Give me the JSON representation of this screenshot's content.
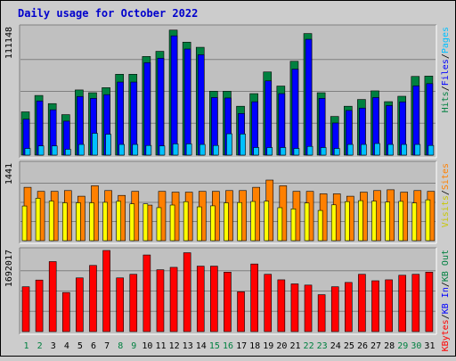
{
  "colors": {
    "background": "#cccccc",
    "panel": "#c0c0c0",
    "border": "#ff0000",
    "title": "#0000cc",
    "hits": "#008040",
    "files": "#0000ff",
    "pages": "#00c0ff",
    "visits": "#ffff00",
    "sites": "#ff8000",
    "kbin": "#008040",
    "kbout": "#0000ff",
    "kbf": "#ff0000",
    "weekday_label": "#000000",
    "weekend_label": "#008040"
  },
  "chart_data": {
    "type": "bar",
    "title": "Daily usage for October 2022",
    "days": [
      "1",
      "2",
      "3",
      "4",
      "5",
      "6",
      "7",
      "8",
      "9",
      "10",
      "11",
      "12",
      "13",
      "14",
      "15",
      "16",
      "17",
      "18",
      "19",
      "20",
      "21",
      "22",
      "23",
      "24",
      "25",
      "26",
      "27",
      "28",
      "29",
      "30",
      "31"
    ],
    "weekend_days": [
      "1",
      "2",
      "8",
      "9",
      "15",
      "16",
      "22",
      "23",
      "29",
      "30"
    ],
    "panels": [
      {
        "id": "hits",
        "ymax_label": "111148",
        "ymax": 111148,
        "axis_legend": [
          {
            "text": "Hits",
            "color": "#008040"
          },
          {
            "text": "/",
            "color": "#000000"
          },
          {
            "text": "Files",
            "color": "#0000ff"
          },
          {
            "text": "/",
            "color": "#000000"
          },
          {
            "text": "Pages",
            "color": "#00c0ff"
          }
        ],
        "series": [
          {
            "name": "Hits",
            "color": "#008040",
            "values": [
              37700,
              52000,
              44900,
              35300,
              56800,
              54400,
              58800,
              70500,
              70500,
              86000,
              90500,
              109000,
              98500,
              94000,
              55700,
              55700,
              42600,
              53600,
              72500,
              60200,
              81800,
              106000,
              54400,
              33700,
              42600,
              48500,
              56000,
              46600,
              51300,
              68600,
              68900
            ]
          },
          {
            "name": "Files",
            "color": "#0000ff",
            "values": [
              31300,
              47200,
              39500,
              29600,
              51100,
              49500,
              52700,
              63700,
              63700,
              80600,
              84500,
              104000,
              92500,
              87500,
              50200,
              49800,
              36300,
              46500,
              64700,
              53600,
              75000,
              101000,
              49500,
              28000,
              38900,
              41000,
              50200,
              43200,
              46400,
              60400,
              62300
            ]
          },
          {
            "name": "Pages",
            "color": "#00c0ff",
            "values": [
              5800,
              8000,
              8000,
              5100,
              9300,
              19000,
              18200,
              9300,
              9300,
              8400,
              8000,
              9800,
              9800,
              9300,
              8400,
              18600,
              18400,
              6600,
              6600,
              6600,
              5800,
              7600,
              6600,
              5800,
              9300,
              9300,
              10100,
              9300,
              9300,
              9300,
              8400
            ]
          }
        ]
      },
      {
        "id": "visits",
        "ymax_label": "1441",
        "ymax": 1441,
        "axis_legend": [
          {
            "text": "Visits",
            "color": "#c8c800"
          },
          {
            "text": "/",
            "color": "#000000"
          },
          {
            "text": "Sites",
            "color": "#ff8000"
          }
        ],
        "series": [
          {
            "name": "Sites",
            "color": "#ff8000",
            "values": [
              1003,
              927,
              927,
              942,
              836,
              1032,
              942,
              851,
              927,
              669,
              927,
              912,
              912,
              927,
              927,
              942,
              942,
              1003,
              1139,
              1032,
              927,
              927,
              881,
              881,
              836,
              912,
              942,
              957,
              912,
              942,
              927
            ]
          },
          {
            "name": "Visits",
            "color": "#ffff00",
            "values": [
              652,
              797,
              745,
              712,
              712,
              712,
              721,
              740,
              692,
              692,
              621,
              670,
              733,
              636,
              655,
              711,
              717,
              737,
              743,
              620,
              598,
              708,
              568,
              674,
              734,
              752,
              744,
              727,
              739,
              709,
              768
            ]
          }
        ]
      },
      {
        "id": "kbytes",
        "ymax_label": "1692017",
        "ymax": 1692017,
        "axis_legend": [
          {
            "text": "KBytes",
            "color": "#ff0000"
          },
          {
            "text": "/",
            "color": "#000000"
          },
          {
            "text": "KB In",
            "color": "#0000ff"
          },
          {
            "text": "/",
            "color": "#000000"
          },
          {
            "text": "KB Out",
            "color": "#008040"
          }
        ],
        "series": [
          {
            "name": "KBytes",
            "color": "#ff0000",
            "values": [
              935000,
              1075000,
              1460000,
              815000,
              1120000,
              1380000,
              1692017,
              1120000,
              1195000,
              1598000,
              1290000,
              1340000,
              1645000,
              1365000,
              1365000,
              1240000,
              830000,
              1410000,
              1195000,
              1080000,
              995000,
              970000,
              770000,
              935000,
              1025000,
              1195000,
              1060000,
              1080000,
              1175000,
              1195000,
              1240000
            ]
          }
        ]
      }
    ]
  }
}
